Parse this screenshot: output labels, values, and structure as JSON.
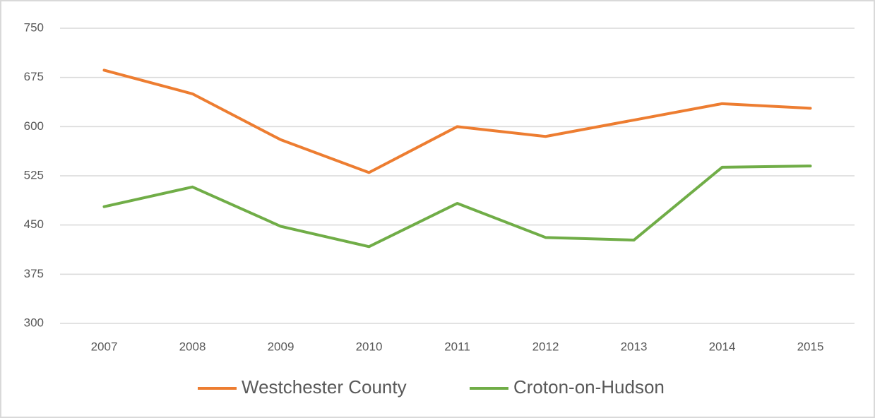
{
  "chart_data": {
    "type": "line",
    "categories": [
      "2007",
      "2008",
      "2009",
      "2010",
      "2011",
      "2012",
      "2013",
      "2014",
      "2015"
    ],
    "series": [
      {
        "name": "Westchester County",
        "color": "#ed7d31",
        "values": [
          686,
          650,
          580,
          530,
          600,
          585,
          610,
          635,
          628
        ]
      },
      {
        "name": "Croton-on-Hudson",
        "color": "#70ad47",
        "values": [
          478,
          508,
          448,
          417,
          483,
          431,
          427,
          538,
          540
        ]
      }
    ],
    "ylim": [
      300,
      750
    ],
    "yticks": [
      300,
      375,
      450,
      525,
      600,
      675,
      750
    ],
    "grid": true,
    "legend": "bottom"
  }
}
